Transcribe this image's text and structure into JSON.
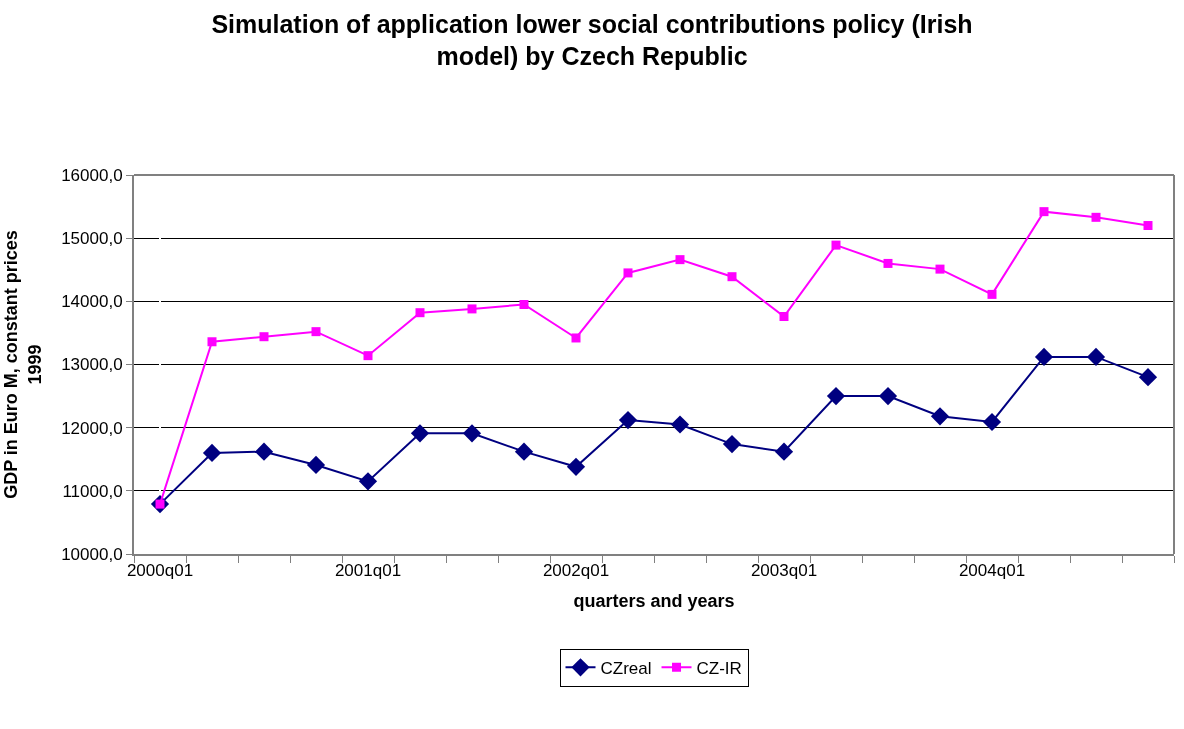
{
  "chart_data": {
    "type": "line",
    "title": "Simulation of application lower social contributions policy (Irish model) by Czech Republic",
    "xlabel": "quarters and years",
    "ylabel": "GDP in Euro M, constant prices 1999",
    "categories": [
      "2000q01",
      null,
      null,
      null,
      "2001q01",
      null,
      null,
      null,
      "2002q01",
      null,
      null,
      null,
      "2003q01",
      null,
      null,
      null,
      "2004q01",
      null,
      null,
      null
    ],
    "series": [
      {
        "name": "CZreal",
        "color": "#000080",
        "marker": "diamond",
        "values": [
          10790,
          11600,
          11620,
          11410,
          11150,
          11910,
          11910,
          11620,
          11380,
          12120,
          12050,
          11740,
          11620,
          12500,
          12500,
          12180,
          12090,
          13120,
          13120,
          12800
        ]
      },
      {
        "name": "CZ-IR",
        "color": "#ff00ff",
        "marker": "square",
        "values": [
          10790,
          13360,
          13440,
          13520,
          13140,
          13820,
          13880,
          13950,
          13420,
          14450,
          14660,
          14390,
          13760,
          14890,
          14600,
          14510,
          14110,
          15420,
          15330,
          15200
        ]
      }
    ],
    "ylim": [
      10000,
      16000
    ],
    "yticks": [
      {
        "value": 10000,
        "label": "10000,0"
      },
      {
        "value": 11000,
        "label": "11000,0"
      },
      {
        "value": 12000,
        "label": "12000,0"
      },
      {
        "value": 13000,
        "label": "13000,0"
      },
      {
        "value": 14000,
        "label": "14000,0"
      },
      {
        "value": 15000,
        "label": "15000,0"
      },
      {
        "value": 16000,
        "label": "16000,0"
      }
    ],
    "grid": "y",
    "legend": "bottom"
  }
}
